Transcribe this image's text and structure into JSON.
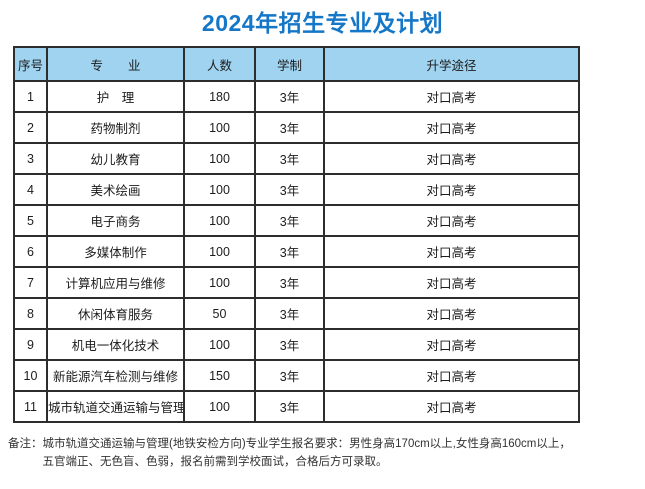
{
  "title": "2024年招生专业及计划",
  "table": {
    "headers": [
      "序号",
      "专　　业",
      "人数",
      "学制",
      "升学途径"
    ],
    "rows": [
      [
        "1",
        "护　理",
        "180",
        "3年",
        "对口高考"
      ],
      [
        "2",
        "药物制剂",
        "100",
        "3年",
        "对口高考"
      ],
      [
        "3",
        "幼儿教育",
        "100",
        "3年",
        "对口高考"
      ],
      [
        "4",
        "美术绘画",
        "100",
        "3年",
        "对口高考"
      ],
      [
        "5",
        "电子商务",
        "100",
        "3年",
        "对口高考"
      ],
      [
        "6",
        "多媒体制作",
        "100",
        "3年",
        "对口高考"
      ],
      [
        "7",
        "计算机应用与维修",
        "100",
        "3年",
        "对口高考"
      ],
      [
        "8",
        "休闲体育服务",
        "50",
        "3年",
        "对口高考"
      ],
      [
        "9",
        "机电一体化技术",
        "100",
        "3年",
        "对口高考"
      ],
      [
        "10",
        "新能源汽车检测与维修",
        "150",
        "3年",
        "对口高考"
      ],
      [
        "11",
        "城市轨道交通运输与管理",
        "100",
        "3年",
        "对口高考"
      ]
    ]
  },
  "note": {
    "label": "备注：",
    "line1": "城市轨道交通运输与管理(地铁安检方向)专业学生报名要求：男性身高170cm以上,女性身高160cm以上，",
    "line2": "五官端正、无色盲、色弱，报名前需到学校面试，合格后方可录取。"
  },
  "colors": {
    "title_blue": "#1577c8",
    "header_bg": "#9fd3f0",
    "border": "#2d2d2d"
  }
}
